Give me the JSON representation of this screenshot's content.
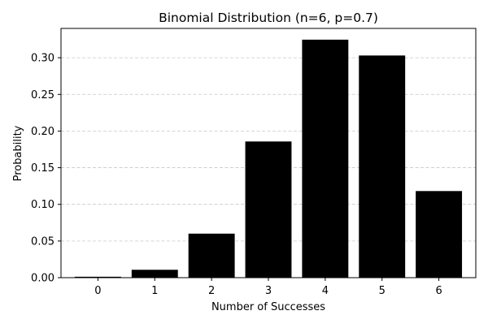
{
  "chart_data": {
    "type": "bar",
    "title": "Binomial Distribution (n=6, p=0.7)",
    "xlabel": "Number of Successes",
    "ylabel": "Probability",
    "categories": [
      "0",
      "1",
      "2",
      "3",
      "4",
      "5",
      "6"
    ],
    "values": [
      0.0007,
      0.0102,
      0.0595,
      0.1852,
      0.3241,
      0.3025,
      0.1176
    ],
    "ylim": [
      0,
      0.34
    ],
    "yticks": [
      "0.00",
      "0.05",
      "0.10",
      "0.15",
      "0.20",
      "0.25",
      "0.30"
    ],
    "grid": "y-dashed",
    "bar_color": "#000000",
    "grid_color": "#c8c8c8"
  }
}
